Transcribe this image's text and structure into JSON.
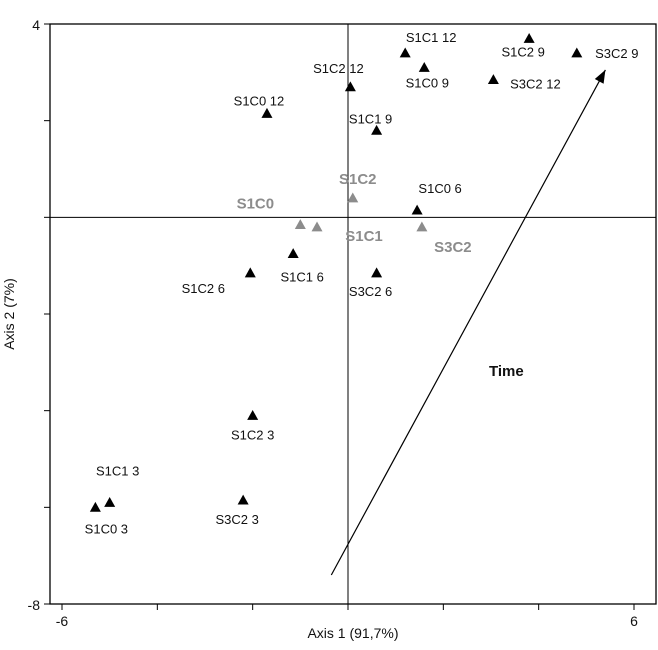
{
  "chart_data": {
    "type": "scatter",
    "xlabel": "Axis 1 (91,7%)",
    "ylabel": "Axis 2 (7%)",
    "xlim": [
      -6,
      6
    ],
    "ylim": [
      -8,
      4
    ],
    "x_ticks": [
      "-6",
      "6"
    ],
    "y_ticks": [
      "4",
      "-8"
    ],
    "grid": false,
    "legend": "none",
    "colors": {
      "sample": "#000000",
      "centroid": "#8c8c8c"
    },
    "series": [
      {
        "name": "",
        "color": "#000000",
        "points": [
          {
            "label": "S1C1 12",
            "x": 1.2,
            "y": 3.4
          },
          {
            "label": "S1C2 12",
            "x": 0.05,
            "y": 2.7
          },
          {
            "label": "S1C0 12",
            "x": -1.7,
            "y": 2.15
          },
          {
            "label": "S1C0 9",
            "x": 1.6,
            "y": 3.1
          },
          {
            "label": "S1C2 9",
            "x": 3.8,
            "y": 3.7
          },
          {
            "label": "S3C2 9",
            "x": 4.8,
            "y": 3.4
          },
          {
            "label": "S3C2 12",
            "x": 3.05,
            "y": 2.85
          },
          {
            "label": "S1C1 9",
            "x": 0.6,
            "y": 1.8
          },
          {
            "label": "S1C0 6",
            "x": 1.45,
            "y": 0.15
          },
          {
            "label": "S1C1 6",
            "x": -1.15,
            "y": -0.75
          },
          {
            "label": "S1C2 6",
            "x": -2.05,
            "y": -1.15
          },
          {
            "label": "S3C2 6",
            "x": 0.6,
            "y": -1.15
          },
          {
            "label": "S1C2 3",
            "x": -2.0,
            "y": -4.1
          },
          {
            "label": "S1C1 3",
            "x": -5.0,
            "y": -5.9
          },
          {
            "label": "S1C0 3",
            "x": -5.3,
            "y": -6.0
          },
          {
            "label": "S3C2 3",
            "x": -2.2,
            "y": -5.85
          }
        ]
      },
      {
        "name": "",
        "color": "#8c8c8c",
        "points": [
          {
            "label": "S1C2",
            "x": 0.1,
            "y": 0.4
          },
          {
            "label": "S1C0",
            "x": -1.0,
            "y": -0.15
          },
          {
            "label": "S1C1",
            "x": -0.65,
            "y": -0.2
          },
          {
            "label": "S3C2",
            "x": 1.55,
            "y": -0.2
          }
        ]
      }
    ],
    "annotations": [
      {
        "text": "Time",
        "type": "arrow",
        "from": {
          "x": -0.35,
          "y": -7.4
        },
        "to": {
          "x": 5.4,
          "y": 3.05
        }
      }
    ]
  }
}
